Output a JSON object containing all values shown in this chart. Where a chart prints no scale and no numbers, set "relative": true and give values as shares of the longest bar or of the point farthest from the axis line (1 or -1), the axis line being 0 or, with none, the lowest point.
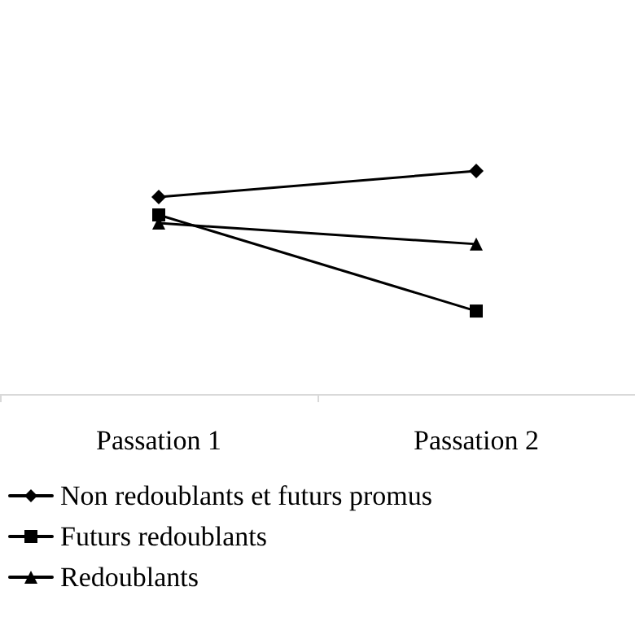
{
  "chart_data": {
    "type": "line",
    "relative": true,
    "categories": [
      "Passation 1",
      "Passation 2"
    ],
    "series": [
      {
        "name": "Non redoublants et futurs promus",
        "color": "#000000",
        "marker": "diamond",
        "values": [
          0.883,
          1
        ]
      },
      {
        "name": "Futurs redoublants",
        "color": "#000000",
        "marker": "square",
        "values": [
          0.803,
          0.372
        ]
      },
      {
        "name": "Redoublants",
        "color": "#000000",
        "marker": "triangle",
        "values": [
          0.766,
          0.672
        ]
      }
    ],
    "legend": "bottom left",
    "line_style": "solid",
    "grid": false
  }
}
